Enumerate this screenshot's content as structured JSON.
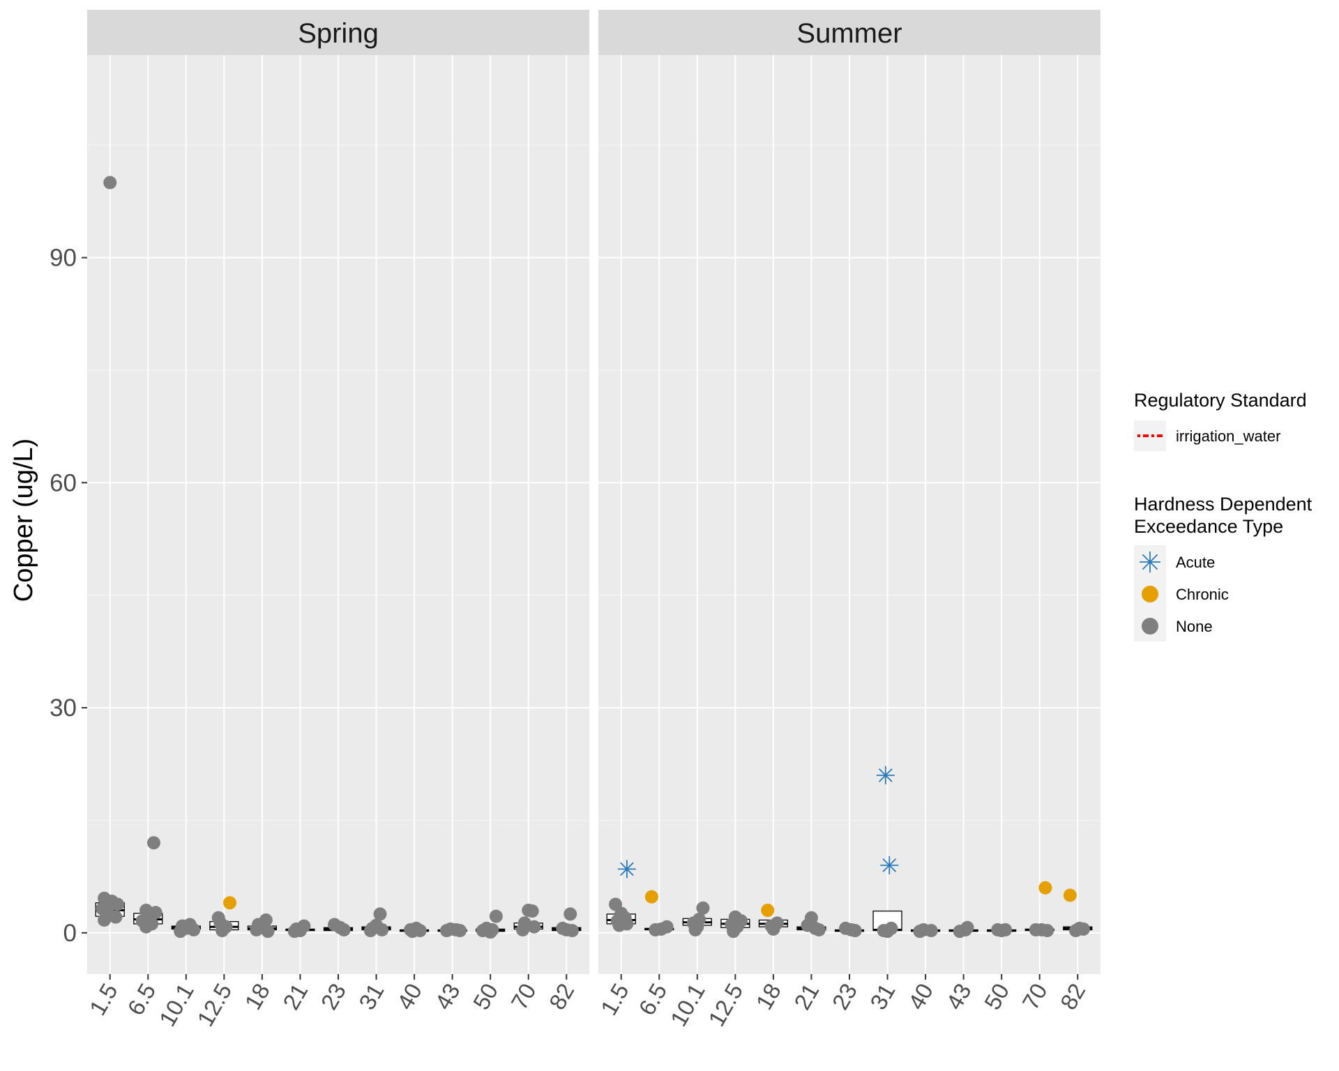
{
  "chart_data": {
    "type": "scatter",
    "description_type": "faceted jitter + boxplot",
    "ylabel": "Copper (ug/L)",
    "xlabel": "",
    "ylim": [
      -5.5,
      117
    ],
    "yticks": [
      0,
      30,
      60,
      90
    ],
    "categories": [
      "1.5",
      "6.5",
      "10.1",
      "12.5",
      "18",
      "21",
      "23",
      "31",
      "40",
      "43",
      "50",
      "70",
      "82"
    ],
    "legend": {
      "position": "right",
      "regulatory": {
        "title": "Regulatory Standard",
        "items": [
          {
            "label": "irrigation_water",
            "color": "#ff0000"
          }
        ]
      },
      "exceedance": {
        "title_lines": [
          "Hardness Dependent",
          "Exceedance Type"
        ],
        "items": [
          {
            "label": "Acute",
            "color": "#2b7bba",
            "shape": "asterisk"
          },
          {
            "label": "Chronic",
            "color": "#e69f00",
            "shape": "circle"
          },
          {
            "label": "None",
            "color": "#7f7f7f",
            "shape": "circle"
          }
        ]
      }
    },
    "facets": [
      {
        "name": "Spring",
        "boxes": [
          {
            "cat": "1.5",
            "q1": 2.2,
            "median": 3.0,
            "q3": 4.0
          },
          {
            "cat": "6.5",
            "q1": 1.2,
            "median": 1.8,
            "q3": 2.6
          },
          {
            "cat": "10.1",
            "q1": 0.5,
            "median": 0.7,
            "q3": 0.9
          },
          {
            "cat": "12.5",
            "q1": 0.4,
            "median": 0.8,
            "q3": 1.5
          },
          {
            "cat": "18",
            "q1": 0.4,
            "median": 0.6,
            "q3": 0.9
          },
          {
            "cat": "21",
            "q1": 0.3,
            "median": 0.4,
            "q3": 0.5
          },
          {
            "cat": "23",
            "q1": 0.3,
            "median": 0.5,
            "q3": 0.7
          },
          {
            "cat": "31",
            "q1": 0.4,
            "median": 0.6,
            "q3": 0.8
          },
          {
            "cat": "40",
            "q1": 0.2,
            "median": 0.3,
            "q3": 0.4
          },
          {
            "cat": "43",
            "q1": 0.2,
            "median": 0.3,
            "q3": 0.4
          },
          {
            "cat": "50",
            "q1": 0.2,
            "median": 0.3,
            "q3": 0.5
          },
          {
            "cat": "70",
            "q1": 0.5,
            "median": 0.8,
            "q3": 1.3
          },
          {
            "cat": "82",
            "q1": 0.3,
            "median": 0.5,
            "q3": 0.7
          }
        ],
        "points": [
          {
            "cat": "1.5",
            "dx": 0.0,
            "y": 100.0,
            "type": "None"
          },
          {
            "cat": "1.5",
            "dx": -0.15,
            "y": 4.6,
            "type": "None"
          },
          {
            "cat": "1.5",
            "dx": 0.05,
            "y": 4.2,
            "type": "None"
          },
          {
            "cat": "1.5",
            "dx": 0.2,
            "y": 3.8,
            "type": "None"
          },
          {
            "cat": "1.5",
            "dx": -0.2,
            "y": 3.2,
            "type": "None"
          },
          {
            "cat": "1.5",
            "dx": -0.05,
            "y": 2.6,
            "type": "None"
          },
          {
            "cat": "1.5",
            "dx": 0.15,
            "y": 2.1,
            "type": "None"
          },
          {
            "cat": "1.5",
            "dx": -0.15,
            "y": 1.7,
            "type": "None"
          },
          {
            "cat": "6.5",
            "dx": 0.15,
            "y": 12.0,
            "type": "None"
          },
          {
            "cat": "6.5",
            "dx": -0.05,
            "y": 3.0,
            "type": "None"
          },
          {
            "cat": "6.5",
            "dx": 0.2,
            "y": 2.7,
            "type": "None"
          },
          {
            "cat": "6.5",
            "dx": 0.0,
            "y": 2.0,
            "type": "None"
          },
          {
            "cat": "6.5",
            "dx": -0.15,
            "y": 1.6,
            "type": "None"
          },
          {
            "cat": "6.5",
            "dx": 0.1,
            "y": 1.2,
            "type": "None"
          },
          {
            "cat": "6.5",
            "dx": -0.05,
            "y": 0.8,
            "type": "None"
          },
          {
            "cat": "10.1",
            "dx": -0.1,
            "y": 0.9,
            "type": "None"
          },
          {
            "cat": "10.1",
            "dx": 0.1,
            "y": 1.1,
            "type": "None"
          },
          {
            "cat": "10.1",
            "dx": 0.0,
            "y": 0.6,
            "type": "None"
          },
          {
            "cat": "10.1",
            "dx": 0.2,
            "y": 0.4,
            "type": "None"
          },
          {
            "cat": "10.1",
            "dx": -0.15,
            "y": 0.2,
            "type": "None"
          },
          {
            "cat": "12.5",
            "dx": 0.15,
            "y": 4.0,
            "type": "Chronic"
          },
          {
            "cat": "12.5",
            "dx": -0.15,
            "y": 2.0,
            "type": "None"
          },
          {
            "cat": "12.5",
            "dx": -0.1,
            "y": 1.3,
            "type": "None"
          },
          {
            "cat": "12.5",
            "dx": 0.05,
            "y": 0.8,
            "type": "None"
          },
          {
            "cat": "12.5",
            "dx": -0.05,
            "y": 0.3,
            "type": "None"
          },
          {
            "cat": "18",
            "dx": 0.1,
            "y": 1.7,
            "type": "None"
          },
          {
            "cat": "18",
            "dx": -0.1,
            "y": 1.1,
            "type": "None"
          },
          {
            "cat": "18",
            "dx": 0.0,
            "y": 0.7,
            "type": "None"
          },
          {
            "cat": "18",
            "dx": -0.15,
            "y": 0.4,
            "type": "None"
          },
          {
            "cat": "18",
            "dx": 0.15,
            "y": 0.2,
            "type": "None"
          },
          {
            "cat": "21",
            "dx": 0.1,
            "y": 0.9,
            "type": "None"
          },
          {
            "cat": "21",
            "dx": -0.1,
            "y": 0.5,
            "type": "None"
          },
          {
            "cat": "21",
            "dx": 0.0,
            "y": 0.3,
            "type": "None"
          },
          {
            "cat": "21",
            "dx": -0.15,
            "y": 0.2,
            "type": "None"
          },
          {
            "cat": "23",
            "dx": -0.1,
            "y": 1.1,
            "type": "None"
          },
          {
            "cat": "23",
            "dx": 0.05,
            "y": 0.7,
            "type": "None"
          },
          {
            "cat": "23",
            "dx": 0.15,
            "y": 0.4,
            "type": "None"
          },
          {
            "cat": "31",
            "dx": 0.1,
            "y": 2.5,
            "type": "None"
          },
          {
            "cat": "31",
            "dx": 0.0,
            "y": 1.0,
            "type": "None"
          },
          {
            "cat": "31",
            "dx": -0.1,
            "y": 0.6,
            "type": "None"
          },
          {
            "cat": "31",
            "dx": 0.15,
            "y": 0.4,
            "type": "None"
          },
          {
            "cat": "31",
            "dx": -0.15,
            "y": 0.3,
            "type": "None"
          },
          {
            "cat": "40",
            "dx": 0.05,
            "y": 0.6,
            "type": "None"
          },
          {
            "cat": "40",
            "dx": -0.1,
            "y": 0.4,
            "type": "None"
          },
          {
            "cat": "40",
            "dx": 0.15,
            "y": 0.3,
            "type": "None"
          },
          {
            "cat": "40",
            "dx": -0.05,
            "y": 0.2,
            "type": "None"
          },
          {
            "cat": "43",
            "dx": -0.05,
            "y": 0.5,
            "type": "None"
          },
          {
            "cat": "43",
            "dx": 0.1,
            "y": 0.4,
            "type": "None"
          },
          {
            "cat": "43",
            "dx": 0.2,
            "y": 0.3,
            "type": "None"
          },
          {
            "cat": "43",
            "dx": -0.15,
            "y": 0.3,
            "type": "None"
          },
          {
            "cat": "50",
            "dx": 0.15,
            "y": 2.2,
            "type": "None"
          },
          {
            "cat": "50",
            "dx": -0.1,
            "y": 0.6,
            "type": "None"
          },
          {
            "cat": "50",
            "dx": 0.05,
            "y": 0.4,
            "type": "None"
          },
          {
            "cat": "50",
            "dx": -0.2,
            "y": 0.3,
            "type": "None"
          },
          {
            "cat": "50",
            "dx": 0.0,
            "y": 0.1,
            "type": "None"
          },
          {
            "cat": "70",
            "dx": 0.0,
            "y": 3.0,
            "type": "None"
          },
          {
            "cat": "70",
            "dx": 0.1,
            "y": 2.9,
            "type": "None"
          },
          {
            "cat": "70",
            "dx": -0.1,
            "y": 1.3,
            "type": "None"
          },
          {
            "cat": "70",
            "dx": 0.15,
            "y": 0.8,
            "type": "None"
          },
          {
            "cat": "70",
            "dx": -0.15,
            "y": 0.4,
            "type": "None"
          },
          {
            "cat": "82",
            "dx": 0.1,
            "y": 2.5,
            "type": "None"
          },
          {
            "cat": "82",
            "dx": -0.1,
            "y": 0.6,
            "type": "None"
          },
          {
            "cat": "82",
            "dx": 0.0,
            "y": 0.4,
            "type": "None"
          },
          {
            "cat": "82",
            "dx": 0.15,
            "y": 0.3,
            "type": "None"
          }
        ]
      },
      {
        "name": "Summer",
        "boxes": [
          {
            "cat": "1.5",
            "q1": 1.2,
            "median": 1.7,
            "q3": 2.5
          },
          {
            "cat": "6.5",
            "q1": 0.4,
            "median": 0.5,
            "q3": 0.6
          },
          {
            "cat": "10.1",
            "q1": 1.0,
            "median": 1.4,
            "q3": 1.9
          },
          {
            "cat": "12.5",
            "q1": 0.7,
            "median": 1.2,
            "q3": 1.8
          },
          {
            "cat": "18",
            "q1": 0.8,
            "median": 1.2,
            "q3": 1.7
          },
          {
            "cat": "21",
            "q1": 0.4,
            "median": 0.6,
            "q3": 0.8
          },
          {
            "cat": "23",
            "q1": 0.2,
            "median": 0.3,
            "q3": 0.4
          },
          {
            "cat": "31",
            "q1": 0.3,
            "median": 0.4,
            "q3": 2.9
          },
          {
            "cat": "40",
            "q1": 0.2,
            "median": 0.3,
            "q3": 0.4
          },
          {
            "cat": "43",
            "q1": 0.2,
            "median": 0.3,
            "q3": 0.4
          },
          {
            "cat": "50",
            "q1": 0.2,
            "median": 0.3,
            "q3": 0.4
          },
          {
            "cat": "70",
            "q1": 0.3,
            "median": 0.4,
            "q3": 0.5
          },
          {
            "cat": "82",
            "q1": 0.4,
            "median": 0.6,
            "q3": 0.8
          }
        ],
        "points": [
          {
            "cat": "1.5",
            "dx": 0.15,
            "y": 8.5,
            "type": "Acute"
          },
          {
            "cat": "1.5",
            "dx": -0.15,
            "y": 3.8,
            "type": "None"
          },
          {
            "cat": "1.5",
            "dx": 0.0,
            "y": 2.6,
            "type": "None"
          },
          {
            "cat": "1.5",
            "dx": 0.1,
            "y": 2.0,
            "type": "None"
          },
          {
            "cat": "1.5",
            "dx": -0.1,
            "y": 1.6,
            "type": "None"
          },
          {
            "cat": "1.5",
            "dx": 0.15,
            "y": 1.2,
            "type": "None"
          },
          {
            "cat": "1.5",
            "dx": -0.05,
            "y": 1.0,
            "type": "None"
          },
          {
            "cat": "6.5",
            "dx": -0.2,
            "y": 4.8,
            "type": "Chronic"
          },
          {
            "cat": "6.5",
            "dx": 0.2,
            "y": 0.8,
            "type": "None"
          },
          {
            "cat": "6.5",
            "dx": 0.05,
            "y": 0.5,
            "type": "None"
          },
          {
            "cat": "6.5",
            "dx": -0.1,
            "y": 0.4,
            "type": "None"
          },
          {
            "cat": "10.1",
            "dx": 0.15,
            "y": 3.3,
            "type": "None"
          },
          {
            "cat": "10.1",
            "dx": 0.05,
            "y": 1.8,
            "type": "None"
          },
          {
            "cat": "10.1",
            "dx": -0.1,
            "y": 1.3,
            "type": "None"
          },
          {
            "cat": "10.1",
            "dx": 0.0,
            "y": 0.8,
            "type": "None"
          },
          {
            "cat": "10.1",
            "dx": -0.05,
            "y": 0.4,
            "type": "None"
          },
          {
            "cat": "12.5",
            "dx": 0.0,
            "y": 2.1,
            "type": "None"
          },
          {
            "cat": "12.5",
            "dx": 0.15,
            "y": 1.6,
            "type": "None"
          },
          {
            "cat": "12.5",
            "dx": -0.1,
            "y": 1.1,
            "type": "None"
          },
          {
            "cat": "12.5",
            "dx": 0.05,
            "y": 0.8,
            "type": "None"
          },
          {
            "cat": "12.5",
            "dx": -0.05,
            "y": 0.2,
            "type": "None"
          },
          {
            "cat": "18",
            "dx": -0.15,
            "y": 3.0,
            "type": "Chronic"
          },
          {
            "cat": "18",
            "dx": 0.1,
            "y": 1.3,
            "type": "None"
          },
          {
            "cat": "18",
            "dx": -0.05,
            "y": 0.9,
            "type": "None"
          },
          {
            "cat": "18",
            "dx": 0.0,
            "y": 0.5,
            "type": "None"
          },
          {
            "cat": "21",
            "dx": 0.0,
            "y": 2.0,
            "type": "None"
          },
          {
            "cat": "21",
            "dx": -0.1,
            "y": 1.0,
            "type": "None"
          },
          {
            "cat": "21",
            "dx": 0.1,
            "y": 0.6,
            "type": "None"
          },
          {
            "cat": "21",
            "dx": 0.2,
            "y": 0.4,
            "type": "None"
          },
          {
            "cat": "23",
            "dx": -0.1,
            "y": 0.6,
            "type": "None"
          },
          {
            "cat": "23",
            "dx": 0.05,
            "y": 0.4,
            "type": "None"
          },
          {
            "cat": "23",
            "dx": 0.15,
            "y": 0.3,
            "type": "None"
          },
          {
            "cat": "31",
            "dx": -0.05,
            "y": 21.0,
            "type": "Acute"
          },
          {
            "cat": "31",
            "dx": 0.05,
            "y": 9.0,
            "type": "Acute"
          },
          {
            "cat": "31",
            "dx": 0.1,
            "y": 0.6,
            "type": "None"
          },
          {
            "cat": "31",
            "dx": -0.1,
            "y": 0.3,
            "type": "None"
          },
          {
            "cat": "31",
            "dx": 0.0,
            "y": 0.2,
            "type": "None"
          },
          {
            "cat": "40",
            "dx": -0.05,
            "y": 0.4,
            "type": "None"
          },
          {
            "cat": "40",
            "dx": 0.15,
            "y": 0.3,
            "type": "None"
          },
          {
            "cat": "40",
            "dx": -0.15,
            "y": 0.2,
            "type": "None"
          },
          {
            "cat": "43",
            "dx": 0.1,
            "y": 0.7,
            "type": "None"
          },
          {
            "cat": "43",
            "dx": -0.1,
            "y": 0.2,
            "type": "None"
          },
          {
            "cat": "43",
            "dx": 0.05,
            "y": 0.4,
            "type": "None"
          },
          {
            "cat": "50",
            "dx": -0.1,
            "y": 0.4,
            "type": "None"
          },
          {
            "cat": "50",
            "dx": 0.1,
            "y": 0.4,
            "type": "None"
          },
          {
            "cat": "50",
            "dx": 0.0,
            "y": 0.3,
            "type": "None"
          },
          {
            "cat": "70",
            "dx": 0.15,
            "y": 6.0,
            "type": "Chronic"
          },
          {
            "cat": "70",
            "dx": -0.1,
            "y": 0.4,
            "type": "None"
          },
          {
            "cat": "70",
            "dx": 0.05,
            "y": 0.4,
            "type": "None"
          },
          {
            "cat": "70",
            "dx": 0.2,
            "y": 0.3,
            "type": "None"
          },
          {
            "cat": "82",
            "dx": -0.2,
            "y": 5.0,
            "type": "Chronic"
          },
          {
            "cat": "82",
            "dx": 0.05,
            "y": 0.6,
            "type": "None"
          },
          {
            "cat": "82",
            "dx": 0.15,
            "y": 0.5,
            "type": "None"
          },
          {
            "cat": "82",
            "dx": -0.05,
            "y": 0.3,
            "type": "None"
          }
        ]
      }
    ]
  }
}
